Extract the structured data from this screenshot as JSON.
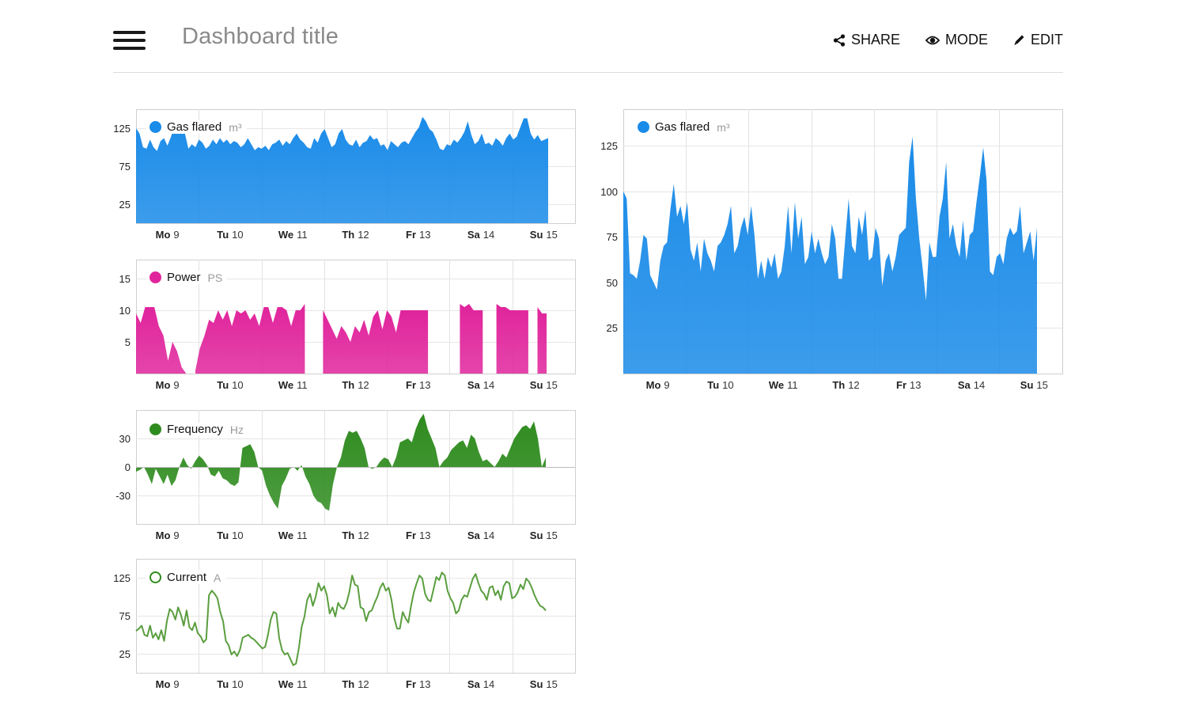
{
  "header": {
    "title": "Dashboard title",
    "actions": [
      {
        "label": "SHARE",
        "icon": "share-icon"
      },
      {
        "label": "MODE",
        "icon": "eye-icon"
      },
      {
        "label": "EDIT",
        "icon": "pencil-icon"
      }
    ]
  },
  "charts": {
    "gas_small": {
      "legend": {
        "name": "Gas flared",
        "unit": "m³",
        "color": "#1a8be8"
      },
      "chart_data": {
        "type": "area",
        "series_name": "Gas flared",
        "color": "#1a8be8",
        "yticks": [
          25,
          75,
          125
        ],
        "ylim": [
          0,
          150
        ],
        "xticks": [
          {
            "day": "Mo",
            "num": "9"
          },
          {
            "day": "Tu",
            "num": "10"
          },
          {
            "day": "We",
            "num": "11"
          },
          {
            "day": "Th",
            "num": "12"
          },
          {
            "day": "Fr",
            "num": "13"
          },
          {
            "day": "Sa",
            "num": "14"
          },
          {
            "day": "Su",
            "num": "15"
          }
        ],
        "values": [
          125,
          118,
          100,
          98,
          110,
          100,
          95,
          108,
          112,
          102,
          114,
          128,
          120,
          124,
          118,
          98,
          104,
          100,
          110,
          106,
          98,
          102,
          110,
          104,
          112,
          106,
          110,
          104,
          108,
          106,
          100,
          104,
          112,
          104,
          96,
          100,
          98,
          102,
          96,
          104,
          106,
          110,
          102,
          108,
          104,
          112,
          118,
          110,
          106,
          100,
          98,
          112,
          106,
          118,
          124,
          112,
          100,
          104,
          118,
          124,
          110,
          104,
          102,
          110,
          100,
          106,
          108,
          116,
          110,
          112,
          102,
          104,
          96,
          108,
          104,
          100,
          106,
          108,
          104,
          112,
          120,
          126,
          140,
          134,
          124,
          120,
          110,
          98,
          96,
          104,
          102,
          110,
          106,
          112,
          120,
          134,
          116,
          104,
          108,
          118,
          104,
          106,
          102,
          112,
          108,
          102,
          112,
          118,
          110,
          114,
          126,
          138,
          138,
          118,
          110,
          116,
          108,
          110,
          112
        ]
      }
    },
    "power": {
      "legend": {
        "name": "Power",
        "unit": "PS",
        "color": "#e0249c"
      },
      "chart_data": {
        "type": "area",
        "series_name": "Power",
        "color": "#e0249c",
        "yticks": [
          5,
          10,
          15
        ],
        "ylim": [
          0,
          18
        ],
        "xticks": [
          {
            "day": "Mo",
            "num": "9"
          },
          {
            "day": "Tu",
            "num": "10"
          },
          {
            "day": "We",
            "num": "11"
          },
          {
            "day": "Th",
            "num": "12"
          },
          {
            "day": "Fr",
            "num": "13"
          },
          {
            "day": "Sa",
            "num": "14"
          },
          {
            "day": "Su",
            "num": "15"
          }
        ],
        "values": [
          9.5,
          8,
          10.5,
          10.5,
          10.5,
          7.5,
          6,
          2,
          5,
          3.5,
          1,
          0,
          null,
          0.5,
          4,
          6,
          8.5,
          8,
          10,
          8.5,
          10,
          7.5,
          10,
          9.5,
          10,
          8.5,
          9.5,
          7.5,
          10.5,
          10.5,
          8,
          10.5,
          10.5,
          10,
          7.5,
          10,
          10,
          11,
          null,
          null,
          null,
          10,
          8.5,
          7,
          5.5,
          7.5,
          6.5,
          5,
          7.5,
          6.5,
          8.5,
          6,
          9,
          10,
          7,
          10,
          9,
          6.5,
          10,
          10,
          10,
          10,
          10,
          10,
          10,
          null,
          null,
          null,
          null,
          null,
          null,
          11,
          10.5,
          11,
          10,
          10,
          10,
          null,
          null,
          11,
          10.5,
          10.5,
          10,
          10,
          10,
          10,
          10,
          null,
          10.5,
          9.5,
          9.5
        ]
      }
    },
    "frequency": {
      "legend": {
        "name": "Frequency",
        "unit": "Hz",
        "color": "#2e8b1e"
      },
      "chart_data": {
        "type": "area",
        "series_name": "Frequency",
        "color": "#2e8b1e",
        "yticks": [
          30,
          0,
          -30
        ],
        "ylim": [
          -60,
          60
        ],
        "xticks": [
          {
            "day": "Mo",
            "num": "9"
          },
          {
            "day": "Tu",
            "num": "10"
          },
          {
            "day": "We",
            "num": "11"
          },
          {
            "day": "Th",
            "num": "12"
          },
          {
            "day": "Fr",
            "num": "13"
          },
          {
            "day": "Sa",
            "num": "14"
          },
          {
            "day": "Su",
            "num": "15"
          }
        ],
        "values": [
          -5,
          -3,
          0,
          -8,
          -18,
          -2,
          -10,
          -18,
          -8,
          -20,
          -14,
          0,
          10,
          2,
          -2,
          6,
          12,
          8,
          2,
          -8,
          -10,
          -4,
          -12,
          -14,
          -18,
          -20,
          -16,
          20,
          22,
          24,
          16,
          0,
          -4,
          -20,
          -30,
          -38,
          -44,
          -20,
          -12,
          -2,
          0,
          -4,
          2,
          -10,
          -18,
          -30,
          -36,
          -38,
          -44,
          -46,
          -18,
          0,
          10,
          28,
          38,
          36,
          38,
          30,
          20,
          0,
          -2,
          0,
          6,
          10,
          8,
          0,
          10,
          26,
          28,
          30,
          26,
          40,
          50,
          56,
          40,
          30,
          20,
          0,
          6,
          10,
          18,
          22,
          26,
          28,
          20,
          34,
          30,
          16,
          6,
          8,
          4,
          0,
          6,
          14,
          10,
          20,
          30,
          36,
          42,
          44,
          40,
          48,
          30,
          0,
          10
        ]
      }
    },
    "current": {
      "legend": {
        "name": "Current",
        "unit": "A",
        "color": "#2e8b1e"
      },
      "chart_data": {
        "type": "line",
        "series_name": "Current",
        "color": "#5a9e3f",
        "yticks": [
          25,
          75,
          125
        ],
        "ylim": [
          0,
          150
        ],
        "xticks": [
          {
            "day": "Mo",
            "num": "9"
          },
          {
            "day": "Tu",
            "num": "10"
          },
          {
            "day": "We",
            "num": "11"
          },
          {
            "day": "Th",
            "num": "12"
          },
          {
            "day": "Fr",
            "num": "13"
          },
          {
            "day": "Sa",
            "num": "14"
          },
          {
            "day": "Su",
            "num": "15"
          }
        ],
        "values": [
          55,
          58,
          62,
          50,
          48,
          62,
          46,
          52,
          44,
          56,
          42,
          68,
          84,
          80,
          70,
          86,
          76,
          62,
          82,
          60,
          56,
          66,
          52,
          48,
          40,
          44,
          102,
          108,
          104,
          98,
          80,
          68,
          42,
          36,
          24,
          28,
          22,
          30,
          46,
          48,
          50,
          46,
          44,
          40,
          36,
          32,
          34,
          50,
          70,
          80,
          78,
          46,
          30,
          24,
          26,
          18,
          10,
          12,
          32,
          60,
          74,
          96,
          104,
          88,
          100,
          118,
          108,
          114,
          102,
          78,
          86,
          74,
          92,
          86,
          84,
          92,
          106,
          128,
          116,
          114,
          86,
          84,
          68,
          80,
          82,
          92,
          100,
          112,
          118,
          108,
          112,
          96,
          72,
          58,
          58,
          80,
          72,
          66,
          88,
          106,
          118,
          128,
          124,
          104,
          96,
          94,
          110,
          126,
          122,
          132,
          128,
          108,
          98,
          92,
          78,
          82,
          96,
          102,
          100,
          112,
          124,
          130,
          118,
          108,
          104,
          96,
          112,
          114,
          102,
          108,
          96,
          114,
          120,
          118,
          98,
          100,
          106,
          116,
          110,
          124,
          120,
          112,
          102,
          94,
          88,
          86,
          82
        ]
      }
    },
    "gas_large": {
      "legend": {
        "name": "Gas flared",
        "unit": "m³",
        "color": "#1a8be8"
      },
      "chart_data": {
        "type": "area",
        "series_name": "Gas flared",
        "color": "#1a8be8",
        "yticks": [
          25,
          50,
          75,
          100,
          125
        ],
        "ylim": [
          0,
          145
        ],
        "xticks": [
          {
            "day": "Mo",
            "num": "9"
          },
          {
            "day": "Tu",
            "num": "10"
          },
          {
            "day": "We",
            "num": "11"
          },
          {
            "day": "Th",
            "num": "12"
          },
          {
            "day": "Fr",
            "num": "13"
          },
          {
            "day": "Sa",
            "num": "14"
          },
          {
            "day": "Su",
            "num": "15"
          }
        ],
        "values": [
          100,
          96,
          55,
          54,
          52,
          62,
          76,
          74,
          54,
          50,
          46,
          62,
          70,
          72,
          90,
          104,
          86,
          92,
          82,
          94,
          68,
          62,
          72,
          56,
          74,
          66,
          62,
          56,
          70,
          72,
          76,
          82,
          92,
          66,
          70,
          80,
          86,
          76,
          92,
          76,
          52,
          62,
          52,
          64,
          58,
          66,
          52,
          56,
          70,
          92,
          66,
          94,
          74,
          86,
          60,
          64,
          78,
          66,
          74,
          66,
          60,
          64,
          82,
          74,
          52,
          52,
          74,
          96,
          70,
          66,
          86,
          76,
          90,
          62,
          64,
          80,
          74,
          48,
          62,
          66,
          56,
          64,
          76,
          78,
          80,
          116,
          130,
          96,
          74,
          58,
          40,
          72,
          64,
          64,
          86,
          96,
          116,
          74,
          82,
          70,
          64,
          84,
          62,
          76,
          78,
          94,
          108,
          124,
          106,
          56,
          54,
          64,
          66,
          60,
          74,
          80,
          76,
          78,
          92,
          66,
          72,
          78,
          62,
          80
        ]
      }
    }
  }
}
